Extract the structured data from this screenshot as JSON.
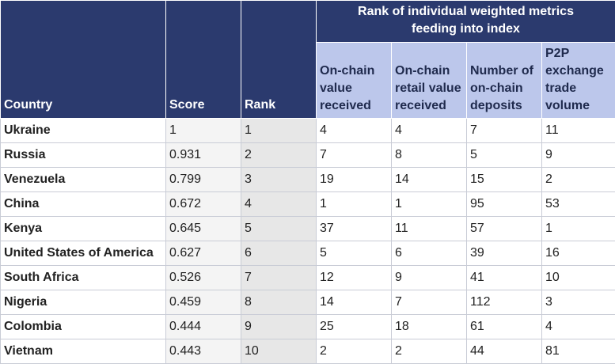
{
  "table": {
    "group_header": "Rank of individual weighted metrics feeding into index",
    "columns": {
      "country": "Country",
      "score": "Score",
      "rank": "Rank",
      "onchain_value": "On-chain value received",
      "onchain_retail": "On-chain retail value received",
      "deposits": "Number of on-chain deposits",
      "p2p": "P2P exchange trade volume"
    },
    "rows": [
      {
        "country": "Ukraine",
        "score": "1",
        "rank": "1",
        "onchain_value": "4",
        "onchain_retail": "4",
        "deposits": "7",
        "p2p": "11"
      },
      {
        "country": "Russia",
        "score": "0.931",
        "rank": "2",
        "onchain_value": "7",
        "onchain_retail": "8",
        "deposits": "5",
        "p2p": "9"
      },
      {
        "country": "Venezuela",
        "score": "0.799",
        "rank": "3",
        "onchain_value": "19",
        "onchain_retail": "14",
        "deposits": "15",
        "p2p": "2"
      },
      {
        "country": "China",
        "score": "0.672",
        "rank": "4",
        "onchain_value": "1",
        "onchain_retail": "1",
        "deposits": "95",
        "p2p": "53"
      },
      {
        "country": "Kenya",
        "score": "0.645",
        "rank": "5",
        "onchain_value": "37",
        "onchain_retail": "11",
        "deposits": "57",
        "p2p": "1"
      },
      {
        "country": "United States of America",
        "score": "0.627",
        "rank": "6",
        "onchain_value": "5",
        "onchain_retail": "6",
        "deposits": "39",
        "p2p": "16"
      },
      {
        "country": "South Africa",
        "score": "0.526",
        "rank": "7",
        "onchain_value": "12",
        "onchain_retail": "9",
        "deposits": "41",
        "p2p": "10"
      },
      {
        "country": "Nigeria",
        "score": "0.459",
        "rank": "8",
        "onchain_value": "14",
        "onchain_retail": "7",
        "deposits": "112",
        "p2p": "3"
      },
      {
        "country": "Colombia",
        "score": "0.444",
        "rank": "9",
        "onchain_value": "25",
        "onchain_retail": "18",
        "deposits": "61",
        "p2p": "4"
      },
      {
        "country": "Vietnam",
        "score": "0.443",
        "rank": "10",
        "onchain_value": "2",
        "onchain_retail": "2",
        "deposits": "44",
        "p2p": "81"
      }
    ]
  }
}
